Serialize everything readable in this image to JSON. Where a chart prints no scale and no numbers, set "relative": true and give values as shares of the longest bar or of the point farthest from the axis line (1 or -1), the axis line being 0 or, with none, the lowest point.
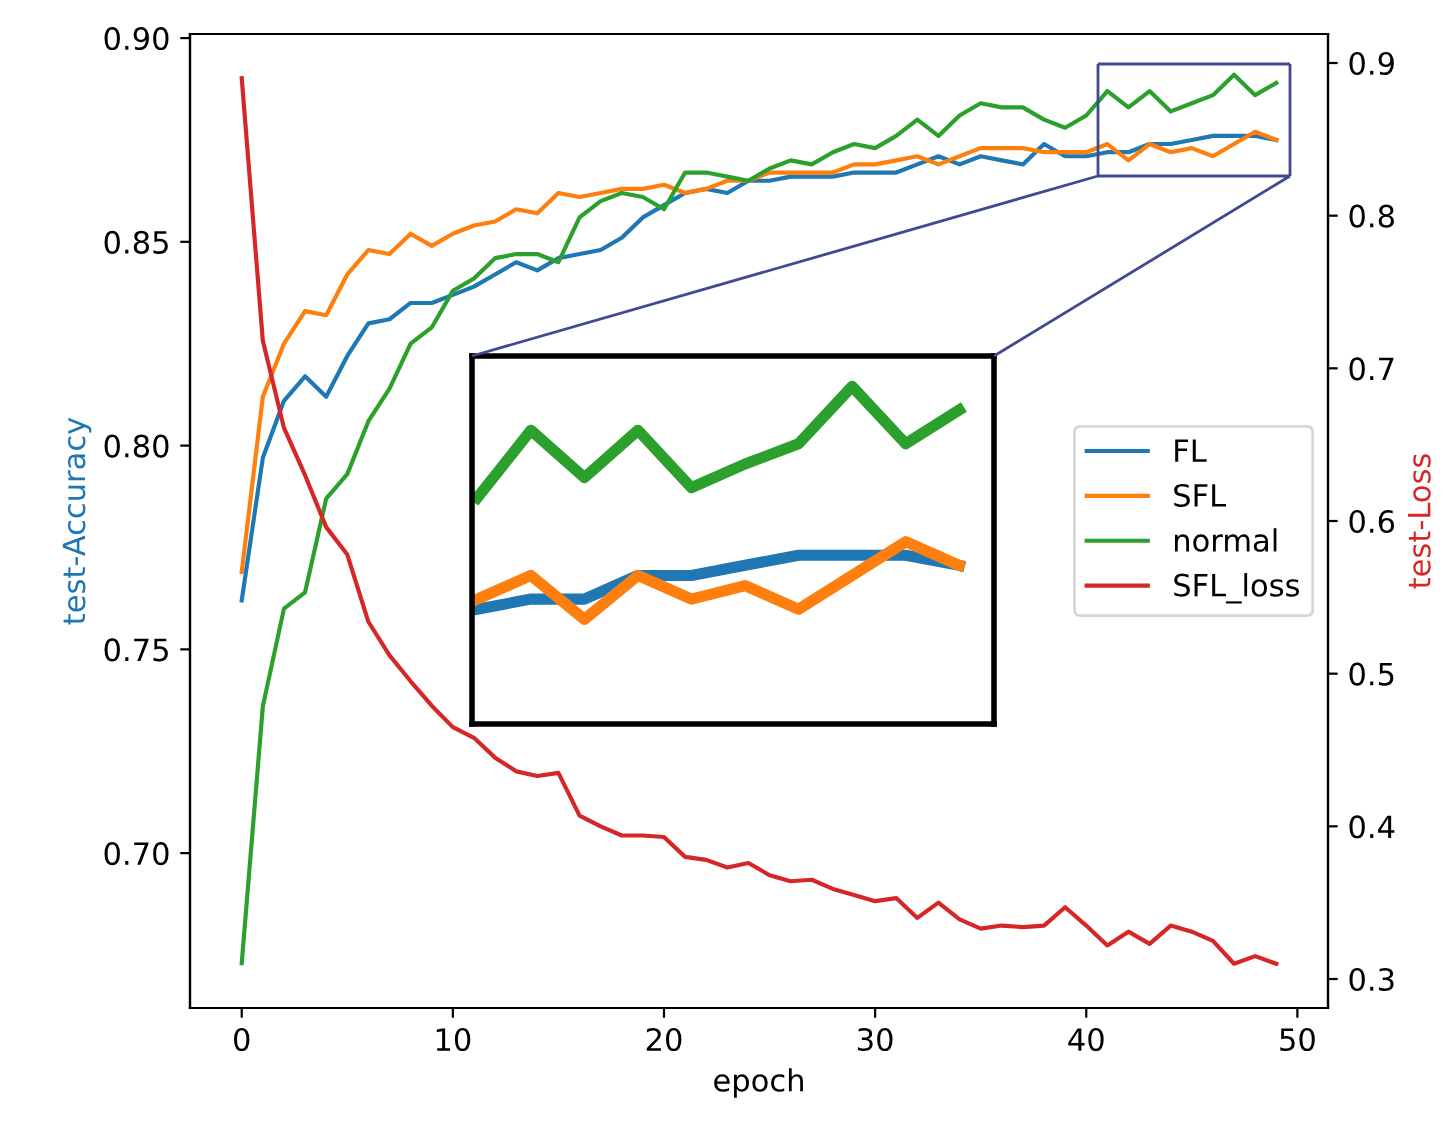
{
  "chart_data": [
    {
      "type": "line",
      "xlabel": "epoch",
      "ylabel": "test-Accuracy",
      "y2label": "test-Loss",
      "x": [
        0,
        1,
        2,
        3,
        4,
        5,
        6,
        7,
        8,
        9,
        10,
        11,
        12,
        13,
        14,
        15,
        16,
        17,
        18,
        19,
        20,
        21,
        22,
        23,
        24,
        25,
        26,
        27,
        28,
        29,
        30,
        31,
        32,
        33,
        34,
        35,
        36,
        37,
        38,
        39,
        40,
        41,
        42,
        43,
        44,
        45,
        46,
        47,
        48,
        49
      ],
      "xlim": [
        -2.45,
        51.45
      ],
      "xticks": [
        0,
        10,
        20,
        30,
        40,
        50
      ],
      "ylim": [
        0.662,
        0.901
      ],
      "yticks": [
        {
          "value": 0.7,
          "label": "0.70"
        },
        {
          "value": 0.75,
          "label": "0.75"
        },
        {
          "value": 0.8,
          "label": "0.80"
        },
        {
          "value": 0.85,
          "label": "0.85"
        },
        {
          "value": 0.9,
          "label": "0.90"
        }
      ],
      "y2lim": [
        0.281,
        0.919
      ],
      "y2ticks": [
        0.3,
        0.4,
        0.5,
        0.6,
        0.7,
        0.8,
        0.9
      ],
      "legend": "center right",
      "grid": false,
      "series": [
        {
          "name": "FL",
          "color": "#1f77b4",
          "values": [
            0.762,
            0.797,
            0.811,
            0.817,
            0.812,
            0.822,
            0.83,
            0.831,
            0.835,
            0.835,
            0.837,
            0.839,
            0.842,
            0.845,
            0.843,
            0.846,
            0.847,
            0.848,
            0.851,
            0.856,
            0.859,
            0.862,
            0.863,
            0.862,
            0.865,
            0.865,
            0.866,
            0.866,
            0.866,
            0.867,
            0.867,
            0.867,
            0.869,
            0.871,
            0.869,
            0.871,
            0.87,
            0.869,
            0.874,
            0.871,
            0.871,
            0.872,
            0.872,
            0.874,
            0.874,
            0.875,
            0.876,
            0.876,
            0.876,
            0.875
          ]
        },
        {
          "name": "SFL",
          "color": "#ff7f0e",
          "values": [
            0.769,
            0.812,
            0.825,
            0.833,
            0.832,
            0.842,
            0.848,
            0.847,
            0.852,
            0.849,
            0.852,
            0.854,
            0.855,
            0.858,
            0.857,
            0.862,
            0.861,
            0.862,
            0.863,
            0.863,
            0.864,
            0.862,
            0.863,
            0.865,
            0.865,
            0.867,
            0.867,
            0.867,
            0.867,
            0.869,
            0.869,
            0.87,
            0.871,
            0.869,
            0.871,
            0.873,
            0.873,
            0.873,
            0.872,
            0.872,
            0.872,
            0.874,
            0.87,
            0.874,
            0.872,
            0.873,
            0.871,
            0.874,
            0.877,
            0.875
          ]
        },
        {
          "name": "normal",
          "color": "#2ca02c",
          "values": [
            0.673,
            0.736,
            0.76,
            0.764,
            0.787,
            0.793,
            0.806,
            0.814,
            0.825,
            0.829,
            0.838,
            0.841,
            0.846,
            0.847,
            0.847,
            0.845,
            0.856,
            0.86,
            0.862,
            0.861,
            0.858,
            0.867,
            0.867,
            0.866,
            0.865,
            0.868,
            0.87,
            0.869,
            0.872,
            0.874,
            0.873,
            0.876,
            0.88,
            0.876,
            0.881,
            0.884,
            0.883,
            0.883,
            0.88,
            0.878,
            0.881,
            0.887,
            0.883,
            0.887,
            0.882,
            0.884,
            0.886,
            0.891,
            0.886,
            0.889
          ]
        },
        {
          "name": "SFL_loss",
          "color": "#d62728",
          "axis": "y2",
          "values": [
            0.89,
            0.718,
            0.661,
            0.63,
            0.596,
            0.578,
            0.534,
            0.512,
            0.495,
            0.479,
            0.465,
            0.458,
            0.445,
            0.436,
            0.433,
            0.435,
            0.407,
            0.4,
            0.394,
            0.394,
            0.393,
            0.38,
            0.378,
            0.373,
            0.376,
            0.368,
            0.364,
            0.365,
            0.359,
            0.355,
            0.351,
            0.353,
            0.34,
            0.35,
            0.339,
            0.333,
            0.335,
            0.334,
            0.335,
            0.347,
            0.335,
            0.322,
            0.331,
            0.323,
            0.335,
            0.331,
            0.325,
            0.31,
            0.315,
            0.31
          ]
        }
      ]
    },
    {
      "type": "line",
      "relative": true,
      "categories": [
        null,
        null,
        null,
        null,
        null,
        null,
        null,
        null,
        null,
        null
      ],
      "series": [
        {
          "color": "#1f77b4",
          "values": [
            0.34,
            0.37,
            0.37,
            0.44,
            0.44,
            0.47,
            0.5,
            0.5,
            0.5,
            0.47
          ]
        },
        {
          "color": "#ff7f0e",
          "values": [
            0.37,
            0.44,
            0.31,
            0.44,
            0.37,
            0.41,
            0.34,
            0.44,
            0.54,
            0.47
          ]
        },
        {
          "color": "#2ca02c",
          "values": [
            0.67,
            0.87,
            0.73,
            0.87,
            0.7,
            0.77,
            0.83,
            1,
            0.83,
            0.93
          ]
        }
      ]
    }
  ]
}
